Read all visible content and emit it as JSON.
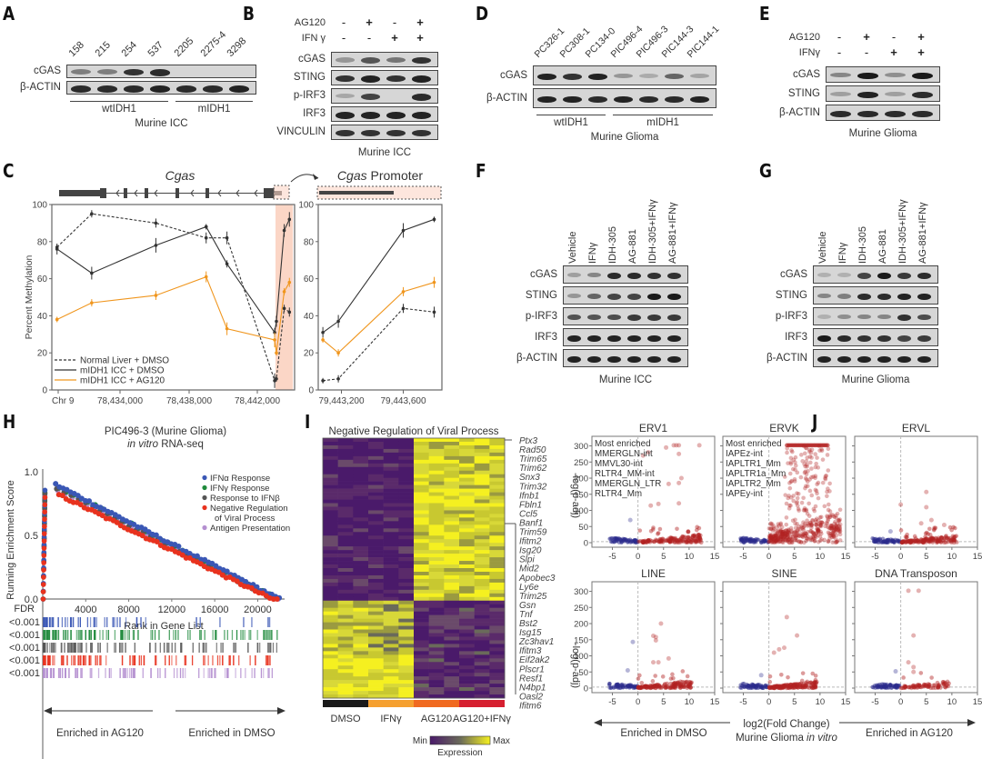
{
  "panels": {
    "A": {
      "letter": "A",
      "lanes": [
        "158",
        "215",
        "254",
        "537",
        "2205",
        "2275-4",
        "3298"
      ],
      "rows": [
        "cGAS",
        "β-ACTIN"
      ],
      "intensity": [
        [
          0.35,
          0.35,
          0.8,
          0.85,
          0,
          0,
          0
        ],
        [
          0.85,
          0.85,
          0.85,
          0.9,
          0.85,
          0.85,
          0.9
        ]
      ],
      "groups": [
        "wtIDH1",
        "mIDH1"
      ],
      "caption": "Murine ICC"
    },
    "B": {
      "letter": "B",
      "treatments": [
        {
          "label": "AG120",
          "values": [
            "-",
            "+",
            "-",
            "+"
          ]
        },
        {
          "label": "IFN γ",
          "values": [
            "-",
            "-",
            "+",
            "+"
          ]
        }
      ],
      "rows": [
        "cGAS",
        "STING",
        "p-IRF3",
        "IRF3",
        "VINCULIN"
      ],
      "intensity": [
        [
          0.2,
          0.6,
          0.4,
          0.8
        ],
        [
          0.8,
          0.9,
          0.8,
          0.9
        ],
        [
          0.1,
          0.7,
          0.0,
          0.85
        ],
        [
          0.9,
          0.9,
          0.9,
          0.9
        ],
        [
          0.8,
          0.8,
          0.8,
          0.8
        ]
      ],
      "caption": "Murine ICC"
    },
    "D": {
      "letter": "D",
      "lanes": [
        "PC326-1",
        "PC308-1",
        "PC134-0",
        "PIC496-4",
        "PIC496-3",
        "PIC144-3",
        "PIC144-1"
      ],
      "rows": [
        "cGAS",
        "β-ACTIN"
      ],
      "intensity": [
        [
          0.9,
          0.8,
          0.9,
          0.2,
          0.08,
          0.5,
          0.12
        ],
        [
          0.9,
          0.9,
          0.85,
          0.9,
          0.85,
          0.85,
          0.9
        ]
      ],
      "groups": [
        "wtIDH1",
        "mIDH1"
      ],
      "caption": "Murine Glioma"
    },
    "E": {
      "letter": "E",
      "treatments": [
        {
          "label": "AG120",
          "values": [
            "-",
            "+",
            "-",
            "+"
          ]
        },
        {
          "label": "IFNγ",
          "values": [
            "-",
            "-",
            "+",
            "+"
          ]
        }
      ],
      "rows": [
        "cGAS",
        "STING",
        "β-ACTIN"
      ],
      "intensity": [
        [
          0.3,
          0.95,
          0.25,
          0.95
        ],
        [
          0.15,
          0.9,
          0.15,
          0.85
        ],
        [
          0.85,
          0.85,
          0.85,
          0.85
        ]
      ],
      "caption": "Murine Glioma"
    },
    "F": {
      "letter": "F",
      "lanes": [
        "Vehicle",
        "IFNγ",
        "IDH-305",
        "AG-881",
        "IDH-305+IFNγ",
        "AG-881+IFNγ"
      ],
      "rows": [
        "cGAS",
        "STING",
        "p-IRF3",
        "IRF3",
        "β-ACTIN"
      ],
      "intensity": [
        [
          0.15,
          0.3,
          0.85,
          0.85,
          0.8,
          0.8
        ],
        [
          0.2,
          0.5,
          0.7,
          0.7,
          0.95,
          0.95
        ],
        [
          0.6,
          0.6,
          0.65,
          0.75,
          0.75,
          0.75
        ],
        [
          0.9,
          0.9,
          0.9,
          0.9,
          0.9,
          0.9
        ],
        [
          0.9,
          0.9,
          0.9,
          0.9,
          0.9,
          0.9
        ]
      ],
      "caption": "Murine ICC"
    },
    "G": {
      "letter": "G",
      "lanes": [
        "Vehicle",
        "IFNγ",
        "IDH-305",
        "AG-881",
        "IDH-305+IFNγ",
        "AG-881+IFNγ"
      ],
      "rows": [
        "cGAS",
        "STING",
        "p-IRF3",
        "IRF3",
        "β-ACTIN"
      ],
      "intensity": [
        [
          0.05,
          0.05,
          0.7,
          0.95,
          0.75,
          0.85
        ],
        [
          0.3,
          0.35,
          0.85,
          0.85,
          0.9,
          0.9
        ],
        [
          0.05,
          0.25,
          0.3,
          0.3,
          0.8,
          0.65
        ],
        [
          0.95,
          0.85,
          0.8,
          0.8,
          0.7,
          0.75
        ],
        [
          0.9,
          0.9,
          0.9,
          0.9,
          0.9,
          0.9
        ]
      ],
      "caption": "Murine Glioma"
    },
    "C": {
      "letter": "C",
      "gene_label": "Cgas",
      "promoter_label_italic": "Cgas",
      "promoter_label_rest": " Promoter"
    },
    "H": {
      "letter": "H",
      "title_line1": "PIC496-3 (Murine Glioma)",
      "title_line2_italic": "in vitro",
      "title_line2_rest": " RNA-seq",
      "fdr_label": "FDR",
      "fdr_values": [
        "<0.001",
        "<0.001",
        "<0.001",
        "<0.001",
        "<0.001"
      ],
      "arrow_left": "Enriched in AG120",
      "arrow_right": "Enriched in DMSO"
    },
    "I": {
      "letter": "I",
      "genes": [
        "Ptx3",
        "Rad50",
        "Trim65",
        "Trim62",
        "Snx3",
        "Trim32",
        "Ifnb1",
        "Fbln1",
        "Ccl5",
        "Banf1",
        "Trim59",
        "Ifitm2",
        "Isg20",
        "Slpi",
        "Mid2",
        "Apobec3",
        "Ly6e",
        "Trim25",
        "Gsn",
        "Tnf",
        "Bst2",
        "Isg15",
        "Zc3hav1",
        "Ifitm3",
        "Eif2ak2",
        "Plscr1",
        "Resf1",
        "N4bp1",
        "Oasl2",
        "Ifitm6"
      ],
      "legend_min": "Min",
      "legend_max": "Max",
      "legend_title": "Expression"
    },
    "J": {
      "letter": "J",
      "ylabel": "-log(p-adj)",
      "xlabel_line1": "log2(Fold Change)",
      "xlabel_line2_prefix": "Murine Glioma ",
      "xlabel_line2_italic": "in vitro",
      "arrow_left": "Enriched in DMSO",
      "arrow_right": "Enriched in AG120",
      "colors": {
        "up": "#b22222",
        "down": "#2a2a8c"
      }
    }
  },
  "chart_data": [
    {
      "id": "C-methylation",
      "type": "line",
      "title": "Cgas",
      "xlabel": "",
      "ylabel": "Percent Methylation",
      "xlim": [
        78430000,
        78444000
      ],
      "ylim": [
        0,
        100
      ],
      "x_tick_labels": [
        "Chr 9",
        "78,434,000",
        "78,438,000",
        "78,442,000"
      ],
      "y_ticks": [
        0,
        20,
        40,
        60,
        80,
        100
      ],
      "highlight_region": [
        78442900,
        78443900
      ],
      "series": [
        {
          "name": "Normal Liver + DMSO",
          "style": "dashed",
          "color": "#333333",
          "x": [
            78430300,
            78432300,
            78436000,
            78438900,
            78440100,
            78442850,
            78442950,
            78443400,
            78443700
          ],
          "y": [
            77,
            95,
            90,
            82,
            82,
            5,
            6,
            44,
            42
          ]
        },
        {
          "name": "mIDH1 ICC + DMSO",
          "style": "solid",
          "color": "#333333",
          "x": [
            78430300,
            78432300,
            78436000,
            78438900,
            78440100,
            78442850,
            78442950,
            78443400,
            78443700
          ],
          "y": [
            76,
            63,
            78,
            88,
            68,
            31,
            37,
            86,
            92
          ]
        },
        {
          "name": "mIDH1 ICC + AG120",
          "style": "solid",
          "color": "#f0961e",
          "x": [
            78430300,
            78432300,
            78436000,
            78438900,
            78440100,
            78442850,
            78442950,
            78443400,
            78443700
          ],
          "y": [
            38,
            47,
            51,
            61,
            33,
            27,
            20,
            53,
            58
          ]
        }
      ],
      "legend": "bottom-left"
    },
    {
      "id": "C-promoter",
      "type": "line",
      "title": "Cgas Promoter",
      "xlim": [
        79443050,
        79443850
      ],
      "ylim": [
        0,
        100
      ],
      "x_tick_labels": [
        "79,443,200",
        "79,443,600"
      ],
      "x_ticks": [
        79443200,
        79443600
      ],
      "y_ticks": [
        0,
        20,
        40,
        60,
        80,
        100
      ],
      "series": [
        {
          "name": "Normal Liver + DMSO",
          "style": "dashed",
          "color": "#333333",
          "x": [
            79443080,
            79443180,
            79443600,
            79443800
          ],
          "y": [
            5,
            6,
            44,
            42
          ]
        },
        {
          "name": "mIDH1 ICC + DMSO",
          "style": "solid",
          "color": "#333333",
          "x": [
            79443080,
            79443180,
            79443600,
            79443800
          ],
          "y": [
            31,
            37,
            86,
            92
          ]
        },
        {
          "name": "mIDH1 ICC + AG120",
          "style": "solid",
          "color": "#f0961e",
          "x": [
            79443080,
            79443180,
            79443600,
            79443800
          ],
          "y": [
            27,
            20,
            53,
            58
          ]
        }
      ]
    },
    {
      "id": "H-gsea",
      "type": "scatter",
      "title": "PIC496-3 (Murine Glioma) in vitro RNA-seq",
      "xlabel": "Rank in Gene List",
      "ylabel": "Running Enrichment Score",
      "xlim": [
        0,
        22500
      ],
      "ylim": [
        0,
        1.0
      ],
      "x_ticks": [
        4000,
        8000,
        12000,
        16000,
        20000
      ],
      "y_ticks": [
        0.0,
        0.5,
        1.0
      ],
      "series": [
        {
          "name": "IFNα Response",
          "color": "#3a57b5",
          "peak_x": 1200,
          "peak_y": 0.9,
          "end_x": 22000
        },
        {
          "name": "IFNγ Response",
          "color": "#1f8a3c",
          "peak_x": 1500,
          "peak_y": 0.88,
          "end_x": 21800
        },
        {
          "name": "Response to IFNβ",
          "color": "#555555",
          "peak_x": 1300,
          "peak_y": 0.87,
          "end_x": 21500
        },
        {
          "name": "Negative Regulation of Viral Process",
          "color": "#e8321e",
          "peak_x": 1500,
          "peak_y": 0.84,
          "end_x": 21800
        },
        {
          "name": "Antigen Presentation",
          "color": "#b48fd0",
          "peak_x": 1400,
          "peak_y": 0.85,
          "end_x": 21900
        }
      ],
      "legend": "top-right"
    },
    {
      "id": "I-heatmap",
      "type": "heatmap",
      "title": "Negative Regulation of Viral Process",
      "groups": [
        "DMSO",
        "IFNγ",
        "AG120",
        "AG120+IFNγ"
      ],
      "group_colors": [
        "#1a1a1a",
        "#f5a030",
        "#f06a20",
        "#d62030"
      ],
      "columns_per_group": 3,
      "rows": 72,
      "pattern": "upper half: low in DMSO/IFNγ, high in AG120/AG120+IFNγ; lower half: high in DMSO/IFNγ, low in AG120 groups",
      "colorscale": [
        "#4a1a6a",
        "#6a6a5a",
        "#f5f020"
      ]
    },
    {
      "id": "J-volcano",
      "type": "scatter",
      "xlabel": "log2(Fold Change)",
      "ylabel": "-log(p-adj)",
      "xlim": [
        -9,
        15
      ],
      "ylim": [
        0,
        310
      ],
      "x_ticks": [
        -5,
        0,
        5,
        10,
        15
      ],
      "y_ticks": [
        0,
        50,
        100,
        150,
        200,
        250,
        300
      ],
      "subplots": [
        {
          "title": "ERV1",
          "annotation": [
            "Most enriched",
            "MMERGLN-int",
            "MMVL30-int",
            "RLTR4_MM-int",
            "MMERGLN_LTR",
            "RLTR4_Mm"
          ],
          "max_up_x": 12.5,
          "density": "medium",
          "outliers": [
            [
              7,
              302
            ],
            [
              7.5,
              302
            ],
            [
              8,
              302
            ],
            [
              12,
              302
            ],
            [
              5.5,
              295
            ],
            [
              1,
              270
            ],
            [
              2,
              280
            ],
            [
              8,
              275
            ],
            [
              8.5,
              200
            ],
            [
              8,
              185
            ],
            [
              6,
              182
            ],
            [
              2.5,
              115
            ],
            [
              4,
              120
            ],
            [
              8,
              122
            ],
            [
              -1.5,
              70
            ]
          ]
        },
        {
          "title": "ERVK",
          "annotation": [
            "Most enriched",
            "IAPEz-int",
            "IAPLTR1_Mm",
            "IAPLTR1a_Mm",
            "IAPLTR2_Mm",
            "IAPEy-int"
          ],
          "max_up_x": 14,
          "density": "high",
          "outliers": []
        },
        {
          "title": "ERVL",
          "annotation": [],
          "max_up_x": 11,
          "density": "medium",
          "outliers": [
            [
              5,
              157
            ],
            [
              5,
              110
            ],
            [
              0,
              118
            ],
            [
              4,
              60
            ],
            [
              6,
              70
            ],
            [
              8.5,
              55
            ],
            [
              -2,
              35
            ]
          ]
        },
        {
          "title": "LINE",
          "annotation": [],
          "max_up_x": 10.5,
          "density": "medium",
          "outliers": [
            [
              4.5,
              200
            ],
            [
              3,
              162
            ],
            [
              3.5,
              158
            ],
            [
              3.5,
              148
            ],
            [
              -1,
              143
            ],
            [
              6,
              92
            ],
            [
              3,
              80
            ],
            [
              4,
              80
            ],
            [
              -2,
              55
            ]
          ]
        },
        {
          "title": "SINE",
          "annotation": [],
          "max_up_x": 9.5,
          "density": "medium",
          "outliers": [
            [
              3.5,
              220
            ],
            [
              5.5,
              163
            ],
            [
              1,
              110
            ],
            [
              3,
              125
            ],
            [
              2,
              120
            ],
            [
              -1.5,
              40
            ]
          ]
        },
        {
          "title": "DNA Transposon",
          "annotation": [],
          "max_up_x": 10,
          "density": "low",
          "outliers": [
            [
              1.5,
              302
            ],
            [
              3.5,
              302
            ],
            [
              2.5,
              163
            ],
            [
              1.5,
              80
            ],
            [
              2.5,
              65
            ],
            [
              2.5,
              50
            ],
            [
              -1,
              52
            ]
          ]
        }
      ]
    }
  ]
}
